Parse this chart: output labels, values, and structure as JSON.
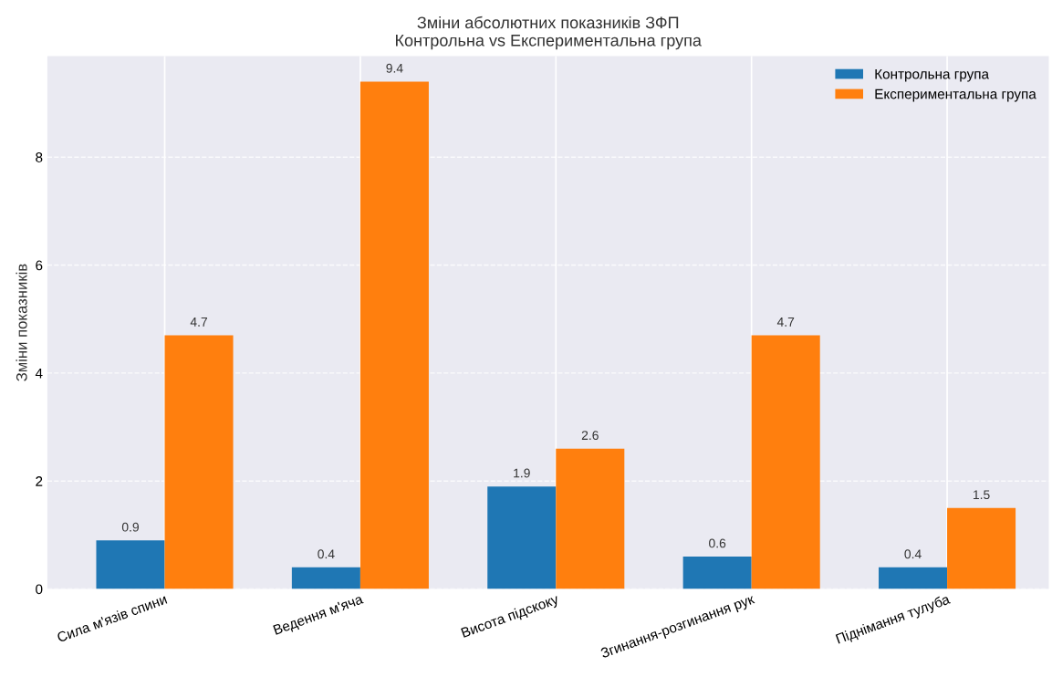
{
  "chart_data": {
    "type": "bar",
    "title": "Зміни абсолютних показників ЗФП\nКонтрольна vs Експериментальна група",
    "ylabel": "Зміни показників",
    "categories": [
      "Сила м'язів спини",
      "Ведення м'яча",
      "Висота підскоку",
      "Згинання-розгинання рук",
      "Піднімання тулуба"
    ],
    "series": [
      {
        "name": "Контрольна група",
        "color": "#1f77b4",
        "values": [
          0.9,
          0.4,
          1.9,
          0.6,
          0.4
        ]
      },
      {
        "name": "Експериментальна група",
        "color": "#ff7f0e",
        "values": [
          4.7,
          9.4,
          2.6,
          4.7,
          1.5
        ]
      }
    ],
    "ylim": [
      0,
      9.87
    ],
    "yticks": [
      0,
      2,
      4,
      6,
      8
    ],
    "grid": true,
    "legend": "top right",
    "data_labels": true
  }
}
